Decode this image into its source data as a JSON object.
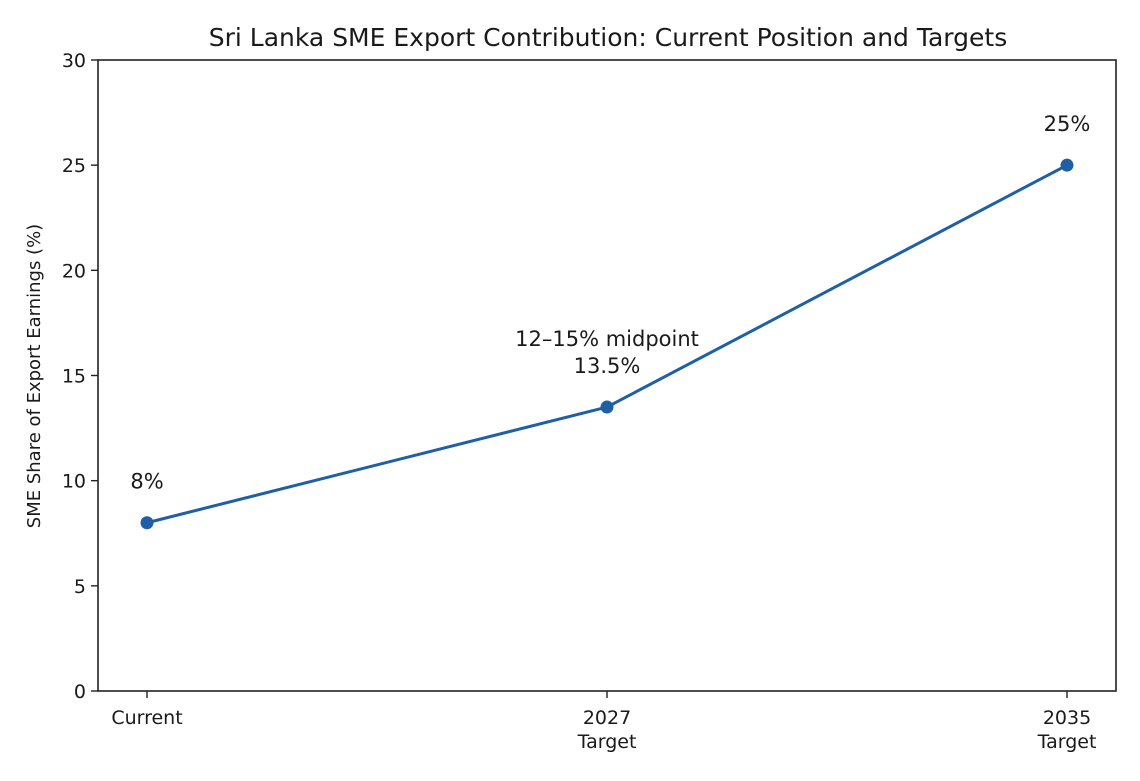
{
  "chart_data": {
    "type": "line",
    "title": "Sri Lanka SME Export Contribution: Current Position and Targets",
    "xlabel": "",
    "ylabel": "SME Share of Export Earnings (%)",
    "categories": [
      [
        "Current"
      ],
      [
        "2027",
        "Target"
      ],
      [
        "2035",
        "Target"
      ]
    ],
    "values": [
      8,
      13.5,
      25
    ],
    "ylim": [
      0,
      30
    ],
    "yticks": [
      0,
      5,
      10,
      15,
      20,
      25,
      30
    ],
    "annotations": [
      [
        "8%"
      ],
      [
        "12–15% midpoint",
        "13.5%"
      ],
      [
        "25%"
      ]
    ],
    "grid": false,
    "legend": "none",
    "color": "#1f5fa6"
  }
}
